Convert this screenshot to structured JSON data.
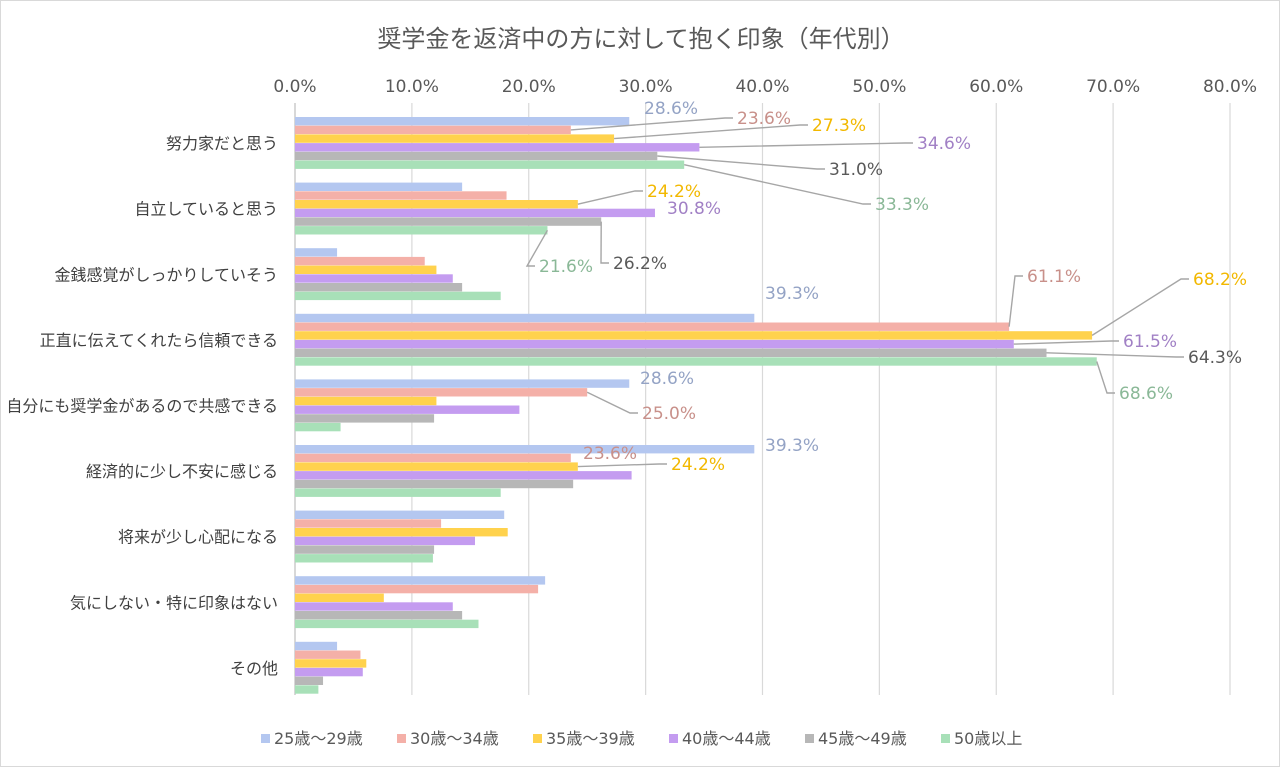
{
  "chart_data": {
    "type": "bar",
    "orientation": "horizontal",
    "title": "奨学金を返済中の方に対して抱く印象（年代別）",
    "xlabel": "",
    "ylabel": "",
    "xlim": [
      0,
      80
    ],
    "x_ticks": [
      "0.0%",
      "10.0%",
      "20.0%",
      "30.0%",
      "40.0%",
      "50.0%",
      "60.0%",
      "70.0%",
      "80.0%"
    ],
    "grid": true,
    "legend_position": "bottom",
    "categories": [
      "努力家だと思う",
      "自立していると思う",
      "金銭感覚がしっかりしていそう",
      "正直に伝えてくれたら信頼できる",
      "自分にも奨学金があるので共感できる",
      "経済的に少し不安に感じる",
      "将来が少し心配になる",
      "気にしない・特に印象はない",
      "その他"
    ],
    "series": [
      {
        "name": "25歳～29歳",
        "color": "#b4c7f0",
        "values": [
          28.6,
          14.3,
          3.6,
          39.3,
          28.6,
          39.3,
          17.9,
          21.4,
          3.6
        ]
      },
      {
        "name": "30歳～34歳",
        "color": "#f4b0a8",
        "values": [
          23.6,
          18.1,
          11.1,
          61.1,
          25.0,
          23.6,
          12.5,
          20.8,
          5.6
        ]
      },
      {
        "name": "35歳～39歳",
        "color": "#ffd24d",
        "values": [
          27.3,
          24.2,
          12.1,
          68.2,
          12.1,
          24.2,
          18.2,
          7.6,
          6.1
        ]
      },
      {
        "name": "40歳～44歳",
        "color": "#c49cf0",
        "values": [
          34.6,
          30.8,
          13.5,
          61.5,
          19.2,
          28.8,
          15.4,
          13.5,
          5.8
        ]
      },
      {
        "name": "45歳～49歳",
        "color": "#b7b7b7",
        "values": [
          31.0,
          26.2,
          14.3,
          64.3,
          11.9,
          23.8,
          11.9,
          14.3,
          2.4
        ]
      },
      {
        "name": "50歳以上",
        "color": "#a8e0b8",
        "values": [
          33.3,
          21.6,
          17.6,
          68.6,
          3.9,
          17.6,
          11.8,
          15.7,
          2.0
        ]
      }
    ],
    "data_labels": [
      {
        "cat": 0,
        "series": 0,
        "text": "28.6%"
      },
      {
        "cat": 0,
        "series": 1,
        "text": "23.6%"
      },
      {
        "cat": 0,
        "series": 2,
        "text": "27.3%"
      },
      {
        "cat": 0,
        "series": 3,
        "text": "34.6%"
      },
      {
        "cat": 0,
        "series": 4,
        "text": "31.0%"
      },
      {
        "cat": 0,
        "series": 5,
        "text": "33.3%"
      },
      {
        "cat": 1,
        "series": 2,
        "text": "24.2%"
      },
      {
        "cat": 1,
        "series": 3,
        "text": "30.8%"
      },
      {
        "cat": 1,
        "series": 4,
        "text": "26.2%"
      },
      {
        "cat": 1,
        "series": 5,
        "text": "21.6%"
      },
      {
        "cat": 3,
        "series": 0,
        "text": "39.3%"
      },
      {
        "cat": 3,
        "series": 1,
        "text": "61.1%"
      },
      {
        "cat": 3,
        "series": 2,
        "text": "68.2%"
      },
      {
        "cat": 3,
        "series": 3,
        "text": "61.5%"
      },
      {
        "cat": 3,
        "series": 4,
        "text": "64.3%"
      },
      {
        "cat": 3,
        "series": 5,
        "text": "68.6%"
      },
      {
        "cat": 4,
        "series": 0,
        "text": "28.6%"
      },
      {
        "cat": 4,
        "series": 1,
        "text": "25.0%"
      },
      {
        "cat": 5,
        "series": 0,
        "text": "39.3%"
      },
      {
        "cat": 5,
        "series": 1,
        "text": "23.6%"
      },
      {
        "cat": 5,
        "series": 2,
        "text": "24.2%"
      }
    ]
  }
}
